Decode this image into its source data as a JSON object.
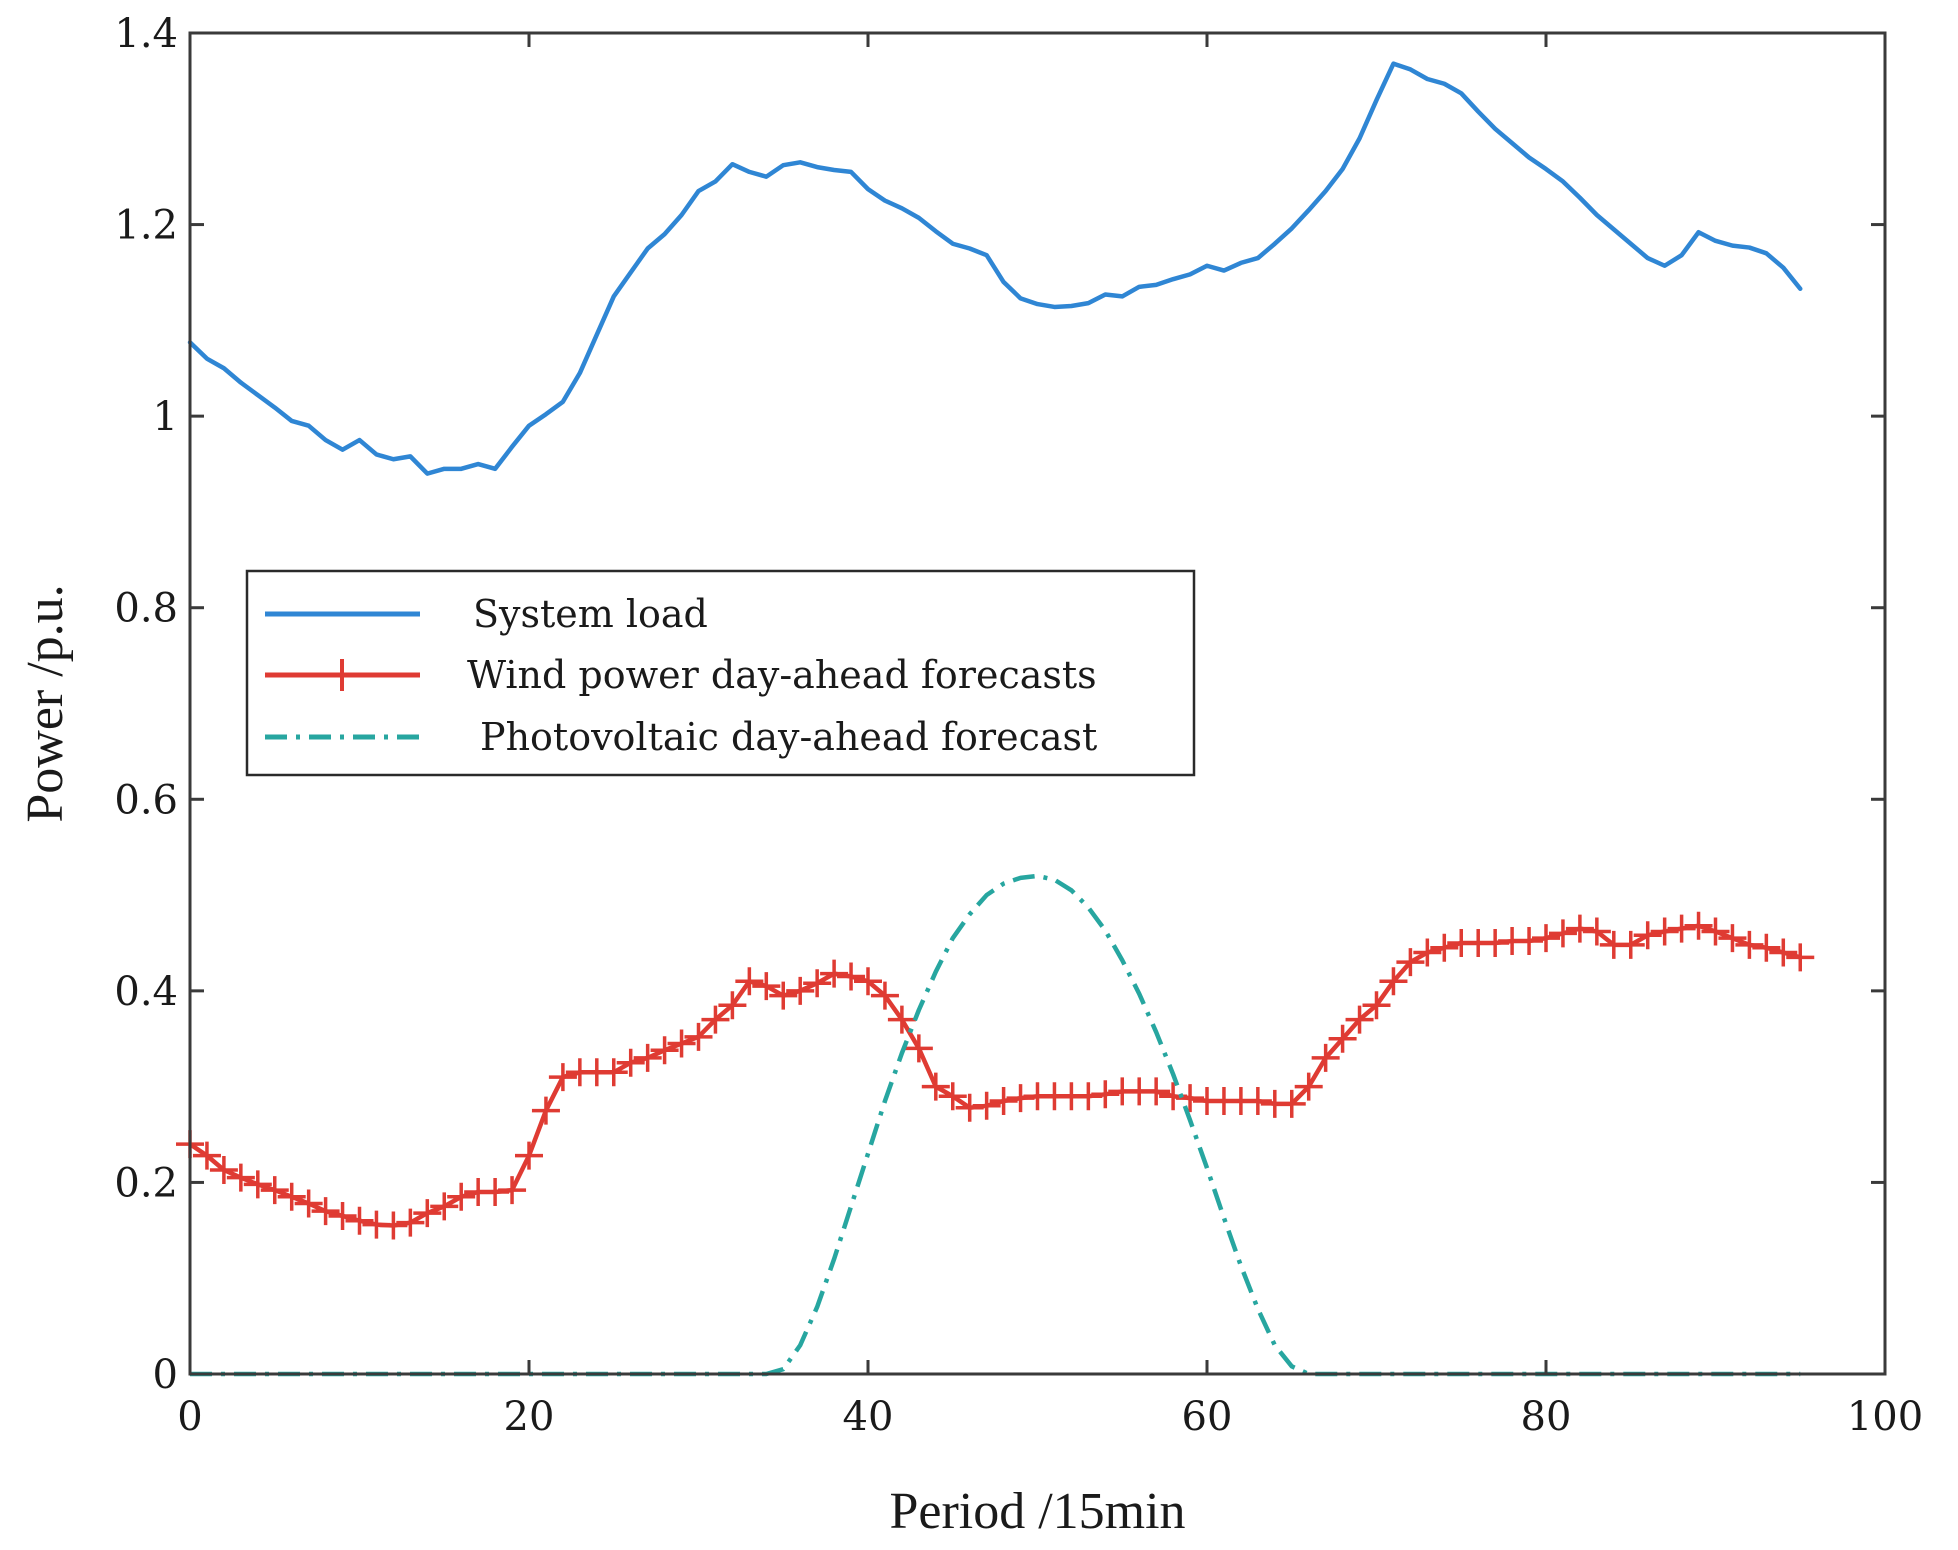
{
  "chart_data": {
    "type": "line",
    "xlabel": "Period /15min",
    "ylabel": "Power /p.u.",
    "xlim": [
      0,
      100
    ],
    "ylim": [
      0,
      1.4
    ],
    "xticks": [
      0,
      20,
      40,
      60,
      80,
      100
    ],
    "yticks": [
      0,
      0.2,
      0.4,
      0.6,
      0.8,
      1,
      1.2,
      1.4
    ],
    "xtick_labels": [
      "0",
      "20",
      "40",
      "60",
      "80",
      "100"
    ],
    "ytick_labels": [
      "0",
      "0.2",
      "0.4",
      "0.6",
      "0.8",
      "1",
      "1.2",
      "1.4"
    ],
    "grid": false,
    "legend_position": "center-left",
    "series": [
      {
        "name": "System load",
        "color": "#2f86d4",
        "style": "solid",
        "marker": "none",
        "x": [
          0,
          1,
          2,
          3,
          4,
          5,
          6,
          7,
          8,
          9,
          10,
          11,
          12,
          13,
          14,
          15,
          16,
          17,
          18,
          19,
          20,
          21,
          22,
          23,
          24,
          25,
          26,
          27,
          28,
          29,
          30,
          31,
          32,
          33,
          34,
          35,
          36,
          37,
          38,
          39,
          40,
          41,
          42,
          43,
          44,
          45,
          46,
          47,
          48,
          49,
          50,
          51,
          52,
          53,
          54,
          55,
          56,
          57,
          58,
          59,
          60,
          61,
          62,
          63,
          64,
          65,
          66,
          67,
          68,
          69,
          70,
          71,
          72,
          73,
          74,
          75,
          76,
          77,
          78,
          79,
          80,
          81,
          82,
          83,
          84,
          85,
          86,
          87,
          88,
          89,
          90,
          91,
          92,
          93,
          94,
          95
        ],
        "values": [
          1.077,
          1.06,
          1.05,
          1.035,
          1.022,
          1.009,
          0.995,
          0.99,
          0.975,
          0.965,
          0.975,
          0.96,
          0.955,
          0.958,
          0.94,
          0.945,
          0.945,
          0.95,
          0.945,
          0.968,
          0.99,
          1.002,
          1.015,
          1.045,
          1.085,
          1.125,
          1.15,
          1.175,
          1.19,
          1.21,
          1.235,
          1.245,
          1.263,
          1.255,
          1.25,
          1.262,
          1.265,
          1.26,
          1.257,
          1.255,
          1.237,
          1.225,
          1.217,
          1.207,
          1.193,
          1.18,
          1.175,
          1.168,
          1.14,
          1.123,
          1.117,
          1.114,
          1.115,
          1.118,
          1.127,
          1.125,
          1.135,
          1.137,
          1.143,
          1.148,
          1.157,
          1.152,
          1.16,
          1.165,
          1.18,
          1.196,
          1.215,
          1.235,
          1.258,
          1.29,
          1.33,
          1.368,
          1.362,
          1.352,
          1.347,
          1.337,
          1.318,
          1.3,
          1.285,
          1.27,
          1.258,
          1.245,
          1.228,
          1.21,
          1.195,
          1.18,
          1.165,
          1.157,
          1.168,
          1.192,
          1.183,
          1.178,
          1.176,
          1.17,
          1.155,
          1.133
        ]
      },
      {
        "name": "Wind power day-ahead forecasts",
        "color": "#df3b33",
        "style": "solid",
        "marker": "plus",
        "x": [
          0,
          1,
          2,
          3,
          4,
          5,
          6,
          7,
          8,
          9,
          10,
          11,
          12,
          13,
          14,
          15,
          16,
          17,
          18,
          19,
          20,
          21,
          22,
          23,
          24,
          25,
          26,
          27,
          28,
          29,
          30,
          31,
          32,
          33,
          34,
          35,
          36,
          37,
          38,
          39,
          40,
          41,
          42,
          43,
          44,
          45,
          46,
          47,
          48,
          49,
          50,
          51,
          52,
          53,
          54,
          55,
          56,
          57,
          58,
          59,
          60,
          61,
          62,
          63,
          64,
          65,
          66,
          67,
          68,
          69,
          70,
          71,
          72,
          73,
          74,
          75,
          76,
          77,
          78,
          79,
          80,
          81,
          82,
          83,
          84,
          85,
          86,
          87,
          88,
          89,
          90,
          91,
          92,
          93,
          94,
          95
        ],
        "values": [
          0.24,
          0.228,
          0.213,
          0.205,
          0.198,
          0.192,
          0.185,
          0.178,
          0.17,
          0.165,
          0.16,
          0.156,
          0.155,
          0.158,
          0.168,
          0.175,
          0.185,
          0.19,
          0.19,
          0.192,
          0.228,
          0.275,
          0.31,
          0.315,
          0.315,
          0.315,
          0.325,
          0.33,
          0.338,
          0.345,
          0.352,
          0.37,
          0.385,
          0.41,
          0.405,
          0.395,
          0.4,
          0.408,
          0.418,
          0.415,
          0.41,
          0.395,
          0.37,
          0.34,
          0.3,
          0.29,
          0.278,
          0.28,
          0.285,
          0.288,
          0.29,
          0.29,
          0.29,
          0.29,
          0.292,
          0.295,
          0.295,
          0.295,
          0.29,
          0.288,
          0.285,
          0.285,
          0.285,
          0.285,
          0.282,
          0.282,
          0.3,
          0.33,
          0.35,
          0.37,
          0.385,
          0.41,
          0.43,
          0.44,
          0.445,
          0.45,
          0.45,
          0.45,
          0.452,
          0.452,
          0.455,
          0.46,
          0.465,
          0.462,
          0.448,
          0.448,
          0.458,
          0.462,
          0.465,
          0.468,
          0.462,
          0.455,
          0.448,
          0.445,
          0.44,
          0.435
        ]
      },
      {
        "name": "Photovoltaic day-ahead forecast",
        "color": "#27a6a0",
        "style": "dash-dot",
        "marker": "none",
        "x": [
          0,
          1,
          2,
          3,
          4,
          5,
          6,
          7,
          8,
          9,
          10,
          11,
          12,
          13,
          14,
          15,
          16,
          17,
          18,
          19,
          20,
          21,
          22,
          23,
          24,
          25,
          26,
          27,
          28,
          29,
          30,
          31,
          32,
          33,
          34,
          35,
          36,
          37,
          38,
          39,
          40,
          41,
          42,
          43,
          44,
          45,
          46,
          47,
          48,
          49,
          50,
          51,
          52,
          53,
          54,
          55,
          56,
          57,
          58,
          59,
          60,
          61,
          62,
          63,
          64,
          65,
          66,
          67,
          68,
          69,
          70,
          71,
          72,
          73,
          74,
          75,
          76,
          77,
          78,
          79,
          80,
          81,
          82,
          83,
          84,
          85,
          86,
          87,
          88,
          89,
          90,
          91,
          92,
          93,
          94,
          95
        ],
        "values": [
          0,
          0,
          0,
          0,
          0,
          0,
          0,
          0,
          0,
          0,
          0,
          0,
          0,
          0,
          0,
          0,
          0,
          0,
          0,
          0,
          0,
          0,
          0,
          0,
          0,
          0,
          0,
          0,
          0,
          0,
          0,
          0,
          0,
          0,
          0,
          0.005,
          0.03,
          0.07,
          0.12,
          0.175,
          0.23,
          0.285,
          0.335,
          0.38,
          0.42,
          0.455,
          0.48,
          0.5,
          0.512,
          0.518,
          0.52,
          0.516,
          0.505,
          0.487,
          0.463,
          0.432,
          0.397,
          0.357,
          0.313,
          0.265,
          0.215,
          0.163,
          0.113,
          0.068,
          0.03,
          0.008,
          0,
          0,
          0,
          0,
          0,
          0,
          0,
          0,
          0,
          0,
          0,
          0,
          0,
          0,
          0,
          0,
          0,
          0,
          0,
          0,
          0,
          0,
          0,
          0,
          0,
          0,
          0,
          0,
          0,
          0
        ]
      }
    ]
  }
}
